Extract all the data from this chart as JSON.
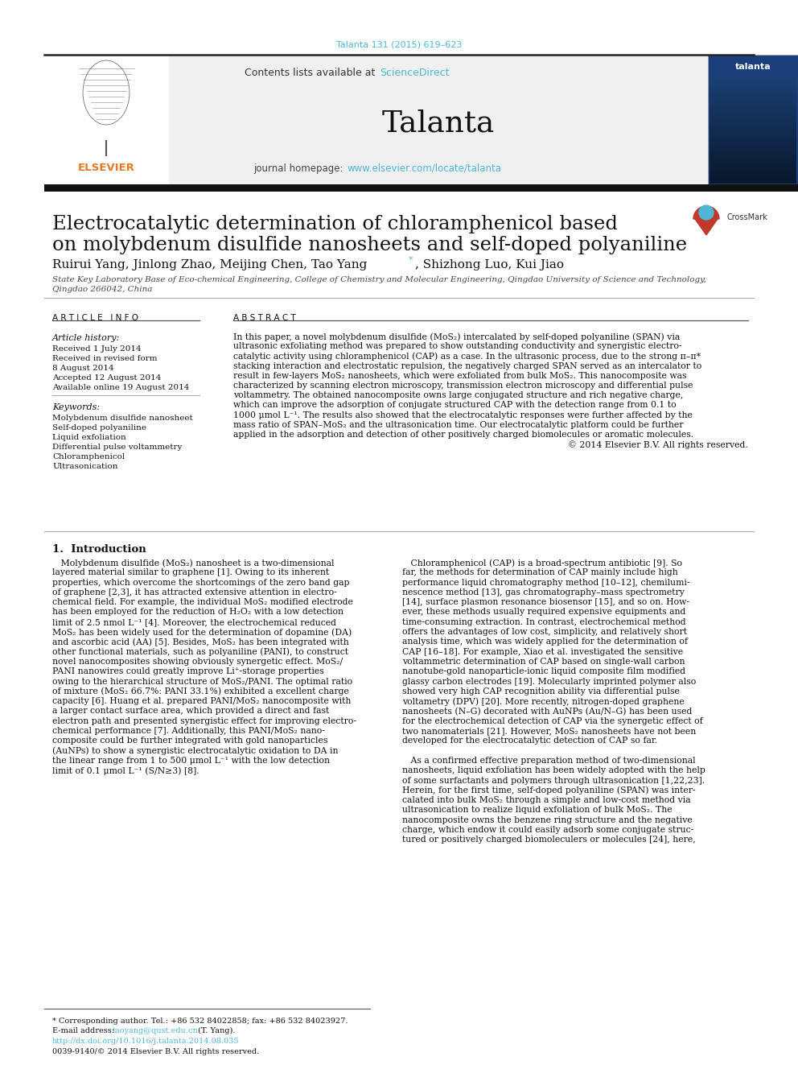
{
  "journal_cite": "Talanta 131 (2015) 619–623",
  "journal_cite_color": "#4db8d4",
  "sciencedirect_color": "#4db8d4",
  "journal_name": "Talanta",
  "journal_homepage_url": "www.elsevier.com/locate/talanta",
  "journal_homepage_color": "#4db8d4",
  "title_line1": "Electrocatalytic determination of chloramphenicol based",
  "title_line2": "on molybdenum disulfide nanosheets and self-doped polyaniline",
  "authors_part1": "Ruirui Yang, Jinlong Zhao, Meijing Chen, Tao Yang",
  "authors_part2": ", Shizhong Luo, Kui Jiao",
  "affiliation_line1": "State Key Laboratory Base of Eco-chemical Engineering, College of Chemistry and Molecular Engineering, Qingdao University of Science and Technology,",
  "affiliation_line2": "Qingdao 266042, China",
  "article_info_header": "A R T I C L E   I N F O",
  "abstract_header": "A B S T R A C T",
  "article_history_label": "Article history:",
  "history_items": [
    "Received 1 July 2014",
    "Received in revised form",
    "8 August 2014",
    "Accepted 12 August 2014",
    "Available online 19 August 2014"
  ],
  "keywords_label": "Keywords:",
  "keywords": [
    "Molybdenum disulfide nanosheet",
    "Self-doped polyaniline",
    "Liquid exfoliation",
    "Differential pulse voltammetry",
    "Chloramphenicol",
    "Ultrasonication"
  ],
  "abstract_lines": [
    "In this paper, a novel molybdenum disulfide (MoS₂) intercalated by self-doped polyaniline (SPAN) via",
    "ultrasonic exfoliating method was prepared to show outstanding conductivity and synergistic electro-",
    "catalytic activity using chloramphenicol (CAP) as a case. In the ultrasonic process, due to the strong π–π*",
    "stacking interaction and electrostatic repulsion, the negatively charged SPAN served as an intercalator to",
    "result in few-layers MoS₂ nanosheets, which were exfoliated from bulk MoS₂. This nanocomposite was",
    "characterized by scanning electron microscopy, transmission electron microscopy and differential pulse",
    "voltammetry. The obtained nanocomposite owns large conjugated structure and rich negative charge,",
    "which can improve the adsorption of conjugate structured CAP with the detection range from 0.1 to",
    "1000 μmol L⁻¹. The results also showed that the electrocatalytic responses were further affected by the",
    "mass ratio of SPAN–MoS₂ and the ultrasonication time. Our electrocatalytic platform could be further",
    "applied in the adsorption and detection of other positively charged biomolecules or aromatic molecules.",
    "© 2014 Elsevier B.V. All rights reserved."
  ],
  "intro_header": "1.  Introduction",
  "intro_col1_lines": [
    "   Molybdenum disulfide (MoS₂) nanosheet is a two-dimensional",
    "layered material similar to graphene [1]. Owing to its inherent",
    "properties, which overcome the shortcomings of the zero band gap",
    "of graphene [2,3], it has attracted extensive attention in electro-",
    "chemical field. For example, the individual MoS₂ modified electrode",
    "has been employed for the reduction of H₂O₂ with a low detection",
    "limit of 2.5 nmol L⁻¹ [4]. Moreover, the electrochemical reduced",
    "MoS₂ has been widely used for the determination of dopamine (DA)",
    "and ascorbic acid (AA) [5]. Besides, MoS₂ has been integrated with",
    "other functional materials, such as polyaniline (PANI), to construct",
    "novel nanocomposites showing obviously synergetic effect. MoS₂/",
    "PANI nanowires could greatly improve Li⁺-storage properties",
    "owing to the hierarchical structure of MoS₂/PANI. The optimal ratio",
    "of mixture (MoS₂ 66.7%: PANI 33.1%) exhibited a excellent charge",
    "capacity [6]. Huang et al. prepared PANI/MoS₂ nanocomposite with",
    "a larger contact surface area, which provided a direct and fast",
    "electron path and presented synergistic effect for improving electro-",
    "chemical performance [7]. Additionally, this PANI/MoS₂ nano-",
    "composite could be further integrated with gold nanoparticles",
    "(AuNPs) to show a synergistic electrocatalytic oxidation to DA in",
    "the linear range from 1 to 500 μmol L⁻¹ with the low detection",
    "limit of 0.1 μmol L⁻¹ (S/N≥3) [8]."
  ],
  "intro_col2_lines": [
    "   Chloramphenicol (CAP) is a broad-spectrum antibiotic [9]. So",
    "far, the methods for determination of CAP mainly include high",
    "performance liquid chromatography method [10–12], chemilumi-",
    "nescence method [13], gas chromatography–mass spectrometry",
    "[14], surface plasmon resonance biosensor [15], and so on. How-",
    "ever, these methods usually required expensive equipments and",
    "time-consuming extraction. In contrast, electrochemical method",
    "offers the advantages of low cost, simplicity, and relatively short",
    "analysis time, which was widely applied for the determination of",
    "CAP [16–18]. For example, Xiao et al. investigated the sensitive",
    "voltammetric determination of CAP based on single-wall carbon",
    "nanotube-gold nanoparticle-ionic liquid composite film modified",
    "glassy carbon electrodes [19]. Molecularly imprinted polymer also",
    "showed very high CAP recognition ability via differential pulse",
    "voltametry (DPV) [20]. More recently, nitrogen-doped graphene",
    "nanosheets (N–G) decorated with AuNPs (Au/N–G) has been used",
    "for the electrochemical detection of CAP via the synergetic effect of",
    "two nanomaterials [21]. However, MoS₂ nanosheets have not been",
    "developed for the electrocatalytic detection of CAP so far.",
    "",
    "   As a confirmed effective preparation method of two-dimensional",
    "nanosheets, liquid exfoliation has been widely adopted with the help",
    "of some surfactants and polymers through ultrasonication [1,22,23].",
    "Herein, for the first time, self-doped polyaniline (SPAN) was inter-",
    "calated into bulk MoS₂ through a simple and low-cost method via",
    "ultrasonication to realize liquid exfoliation of bulk MoS₂. The",
    "nanocomposite owns the benzene ring structure and the negative",
    "charge, which endow it could easily adsorb some conjugate struc-",
    "tured or positively charged biomoleculers or molecules [24], here,"
  ],
  "footnote_star": "* Corresponding author. Tel.: +86 532 84022858; fax: +86 532 84023927.",
  "footnote_email_label": "E-mail address: ",
  "footnote_email_link": "taoyang@qust.edu.cn",
  "footnote_email_rest": " (T. Yang).",
  "footnote_doi": "http://dx.doi.org/10.1016/j.talanta.2014.08.035",
  "footnote_issn": "0039-9140/© 2014 Elsevier B.V. All rights reserved.",
  "header_bg_color": "#f0f0f0",
  "title_bar_color": "#111111",
  "elsevier_orange": "#e87722",
  "link_color": "#4db8d4",
  "text_color": "#111111"
}
